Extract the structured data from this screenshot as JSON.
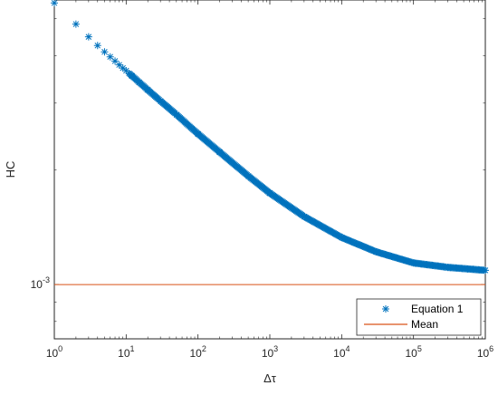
{
  "chart_data": {
    "type": "scatter",
    "xlabel": "Δτ",
    "ylabel": "HC",
    "xscale": "log",
    "yscale": "log",
    "xlim": [
      1,
      1000000
    ],
    "ylim": [
      0.00072,
      0.0056
    ],
    "x_ticks": [
      {
        "value": 1,
        "base": "10",
        "exp": "0"
      },
      {
        "value": 10,
        "base": "10",
        "exp": "1"
      },
      {
        "value": 100,
        "base": "10",
        "exp": "2"
      },
      {
        "value": 1000,
        "base": "10",
        "exp": "3"
      },
      {
        "value": 10000,
        "base": "10",
        "exp": "4"
      },
      {
        "value": 100000,
        "base": "10",
        "exp": "5"
      },
      {
        "value": 1000000,
        "base": "10",
        "exp": "6"
      }
    ],
    "y_ticks": [
      {
        "value": 0.001,
        "base": "10",
        "exp": "-3"
      }
    ],
    "grid": false,
    "legend_position": "bottom-right",
    "series": [
      {
        "name": "Equation 1",
        "kind": "markers",
        "marker": "asterisk",
        "color": "#0072BD",
        "x": [
          1,
          2,
          3,
          4,
          5,
          6,
          7,
          8,
          9,
          10,
          12,
          15,
          20,
          30,
          50,
          100,
          200,
          500,
          1000,
          3000,
          10000,
          30000,
          100000,
          300000,
          1000000
        ],
        "y": [
          0.0055,
          0.00484,
          0.00448,
          0.00425,
          0.00409,
          0.00397,
          0.00387,
          0.00378,
          0.00371,
          0.00365,
          0.00354,
          0.00341,
          0.00325,
          0.00304,
          0.0028,
          0.00249,
          0.00223,
          0.00193,
          0.00174,
          0.00151,
          0.00133,
          0.00122,
          0.00114,
          0.00111,
          0.00109
        ]
      },
      {
        "name": "Mean",
        "kind": "line",
        "color": "#D95319",
        "y": 0.001
      }
    ]
  }
}
